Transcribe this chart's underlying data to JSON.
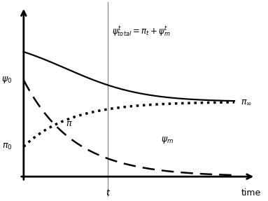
{
  "background_color": "#ffffff",
  "figsize": [
    3.83,
    2.87
  ],
  "dpi": 100,
  "t_x": 4.0,
  "annotation_formula": "$\\psi^t_{total} = \\pi_t + \\psi^t_m$",
  "label_psi0": "$\\psi_0$",
  "label_pi0": "$\\pi_0$",
  "label_pi_inf": "$\\pi_{\\infty}$",
  "label_psi_m": "$\\psi_m$",
  "label_pi": "$\\pi$",
  "label_t": "$t$",
  "label_time": "time",
  "psi0_y": 5.8,
  "pi0_y": 1.8,
  "pi_inf_y": 4.5,
  "xlim": [
    -0.4,
    11.5
  ],
  "ylim": [
    -1.2,
    10.5
  ]
}
